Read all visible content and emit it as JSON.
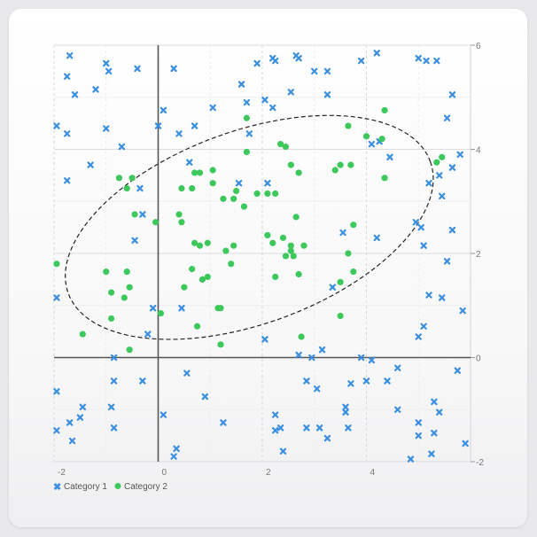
{
  "chart_data": {
    "type": "scatter",
    "xlim": [
      -2,
      6
    ],
    "ylim": [
      -2,
      6
    ],
    "x_ticks": [
      "-2",
      "0",
      "2",
      "4"
    ],
    "y_ticks": [
      "-2",
      "0",
      "2",
      "4",
      "6"
    ],
    "grid": true,
    "legend_position": "bottom-left",
    "series": [
      {
        "name": "Category 1",
        "marker": "x",
        "color": "#3a8fe0",
        "points": [
          [
            -1.7,
            5.8
          ],
          [
            -1.75,
            5.4
          ],
          [
            -1.6,
            5.05
          ],
          [
            -1.2,
            5.15
          ],
          [
            -1.0,
            5.65
          ],
          [
            -0.95,
            5.5
          ],
          [
            -0.4,
            5.55
          ],
          [
            0.3,
            5.55
          ],
          [
            0.1,
            4.75
          ],
          [
            0,
            4.45
          ],
          [
            -1.95,
            4.45
          ],
          [
            -1.75,
            4.3
          ],
          [
            -1.0,
            4.4
          ],
          [
            -0.7,
            4.05
          ],
          [
            -1.3,
            3.7
          ],
          [
            -1.75,
            3.4
          ],
          [
            -0.35,
            3.25
          ],
          [
            -0.3,
            2.75
          ],
          [
            -0.45,
            2.25
          ],
          [
            0.6,
            3.75
          ],
          [
            0.4,
            4.3
          ],
          [
            0.7,
            4.45
          ],
          [
            1.05,
            4.8
          ],
          [
            1.6,
            5.25
          ],
          [
            1.7,
            4.9
          ],
          [
            2.05,
            4.95
          ],
          [
            2.2,
            4.8
          ],
          [
            1.75,
            4.3
          ],
          [
            1.9,
            5.65
          ],
          [
            2.2,
            5.75
          ],
          [
            2.25,
            5.7
          ],
          [
            2.65,
            5.8
          ],
          [
            2.7,
            5.75
          ],
          [
            2.55,
            5.1
          ],
          [
            3.0,
            5.5
          ],
          [
            3.25,
            5.5
          ],
          [
            3.25,
            5.05
          ],
          [
            3.9,
            5.7
          ],
          [
            4.2,
            5.85
          ],
          [
            5.0,
            5.75
          ],
          [
            5.15,
            5.7
          ],
          [
            5.35,
            5.7
          ],
          [
            5.65,
            5.05
          ],
          [
            5.55,
            4.6
          ],
          [
            5.8,
            3.9
          ],
          [
            5.65,
            3.65
          ],
          [
            5.4,
            3.5
          ],
          [
            5.2,
            3.35
          ],
          [
            5.45,
            3.1
          ],
          [
            4.1,
            4.1
          ],
          [
            4.25,
            4.15
          ],
          [
            4.45,
            3.85
          ],
          [
            5.65,
            2.45
          ],
          [
            5.05,
            2.5
          ],
          [
            4.95,
            2.6
          ],
          [
            5.1,
            2.15
          ],
          [
            5.55,
            1.85
          ],
          [
            3.55,
            2.4
          ],
          [
            4.2,
            2.3
          ],
          [
            5.2,
            1.2
          ],
          [
            5.45,
            1.15
          ],
          [
            5.85,
            0.9
          ],
          [
            5.1,
            0.6
          ],
          [
            5.0,
            0.4
          ],
          [
            3.35,
            1.35
          ],
          [
            1.55,
            3.35
          ],
          [
            2.1,
            3.35
          ],
          [
            2.05,
            0.35
          ],
          [
            2.7,
            0.05
          ],
          [
            2.95,
            0.0
          ],
          [
            3.15,
            0.15
          ],
          [
            3.9,
            0.0
          ],
          [
            4.1,
            -0.05
          ],
          [
            4.6,
            -0.2
          ],
          [
            4.4,
            -0.45
          ],
          [
            4.0,
            -0.45
          ],
          [
            3.7,
            -0.5
          ],
          [
            3.05,
            -0.6
          ],
          [
            2.85,
            -0.45
          ],
          [
            3.6,
            -0.95
          ],
          [
            3.6,
            -1.05
          ],
          [
            4.6,
            -1.0
          ],
          [
            5.3,
            -0.85
          ],
          [
            5.4,
            -1.05
          ],
          [
            5.3,
            -1.45
          ],
          [
            5.0,
            -1.25
          ],
          [
            5.0,
            -1.5
          ],
          [
            5.25,
            -1.85
          ],
          [
            4.85,
            -1.95
          ],
          [
            5.75,
            -0.25
          ],
          [
            5.9,
            -1.65
          ],
          [
            -0.85,
            0.0
          ],
          [
            -0.85,
            -0.45
          ],
          [
            -0.3,
            -0.45
          ],
          [
            -0.9,
            -0.95
          ],
          [
            -0.85,
            -1.35
          ],
          [
            -1.45,
            -0.95
          ],
          [
            -1.5,
            -1.15
          ],
          [
            -1.7,
            -1.25
          ],
          [
            -1.65,
            -1.6
          ],
          [
            -1.95,
            -1.4
          ],
          [
            -1.95,
            -0.65
          ],
          [
            0.1,
            -1.1
          ],
          [
            0.55,
            -0.3
          ],
          [
            0.9,
            -0.75
          ],
          [
            1.25,
            -1.25
          ],
          [
            0.35,
            -1.75
          ],
          [
            0.3,
            -1.9
          ],
          [
            2.25,
            -1.1
          ],
          [
            2.25,
            -1.4
          ],
          [
            2.35,
            -1.35
          ],
          [
            2.4,
            -1.8
          ],
          [
            2.85,
            -1.35
          ],
          [
            3.1,
            -1.35
          ],
          [
            3.25,
            -1.55
          ],
          [
            3.65,
            -1.35
          ],
          [
            -0.1,
            0.95
          ],
          [
            0.45,
            0.95
          ],
          [
            -1.95,
            1.15
          ],
          [
            -0.2,
            0.45
          ]
        ]
      },
      {
        "name": "Category 2",
        "marker": "circle",
        "color": "#3cc85a",
        "points": [
          [
            -1.95,
            1.8
          ],
          [
            -1.45,
            0.45
          ],
          [
            -1.0,
            1.65
          ],
          [
            -0.9,
            1.25
          ],
          [
            -0.9,
            0.75
          ],
          [
            -0.75,
            3.45
          ],
          [
            -0.6,
            3.25
          ],
          [
            -0.5,
            3.45
          ],
          [
            -0.45,
            2.75
          ],
          [
            -0.6,
            1.65
          ],
          [
            -0.55,
            1.35
          ],
          [
            -0.65,
            1.15
          ],
          [
            -0.55,
            0.15
          ],
          [
            -0.05,
            2.6
          ],
          [
            0.05,
            0.85
          ],
          [
            0.4,
            2.75
          ],
          [
            0.45,
            2.6
          ],
          [
            0.45,
            3.25
          ],
          [
            0.65,
            3.25
          ],
          [
            0.7,
            3.55
          ],
          [
            0.8,
            3.55
          ],
          [
            0.5,
            1.35
          ],
          [
            0.65,
            1.7
          ],
          [
            0.85,
            1.5
          ],
          [
            0.95,
            1.55
          ],
          [
            0.7,
            2.2
          ],
          [
            0.8,
            2.15
          ],
          [
            0.95,
            2.2
          ],
          [
            1.05,
            3.6
          ],
          [
            1.05,
            3.35
          ],
          [
            1.25,
            3.05
          ],
          [
            1.45,
            3.05
          ],
          [
            1.5,
            3.2
          ],
          [
            1.65,
            2.9
          ],
          [
            1.15,
            0.95
          ],
          [
            1.2,
            0.95
          ],
          [
            0.75,
            0.6
          ],
          [
            1.2,
            0.25
          ],
          [
            1.3,
            2.05
          ],
          [
            1.45,
            2.15
          ],
          [
            1.4,
            1.8
          ],
          [
            1.7,
            3.95
          ],
          [
            1.7,
            4.6
          ],
          [
            1.9,
            3.15
          ],
          [
            2.1,
            3.15
          ],
          [
            2.25,
            3.15
          ],
          [
            2.35,
            4.1
          ],
          [
            2.45,
            4.05
          ],
          [
            2.55,
            3.7
          ],
          [
            2.7,
            3.55
          ],
          [
            2.65,
            2.7
          ],
          [
            2.1,
            2.35
          ],
          [
            2.2,
            2.2
          ],
          [
            2.4,
            2.3
          ],
          [
            2.45,
            1.95
          ],
          [
            2.55,
            2.15
          ],
          [
            2.55,
            2.05
          ],
          [
            2.6,
            1.95
          ],
          [
            2.8,
            2.15
          ],
          [
            2.25,
            1.55
          ],
          [
            2.7,
            1.6
          ],
          [
            2.75,
            0.4
          ],
          [
            3.4,
            3.6
          ],
          [
            3.5,
            3.7
          ],
          [
            3.7,
            3.7
          ],
          [
            3.65,
            4.45
          ],
          [
            4.0,
            4.25
          ],
          [
            4.35,
            4.75
          ],
          [
            4.3,
            4.2
          ],
          [
            4.35,
            3.45
          ],
          [
            3.75,
            2.55
          ],
          [
            3.65,
            2.0
          ],
          [
            3.75,
            1.65
          ],
          [
            3.5,
            1.45
          ],
          [
            3.5,
            0.8
          ],
          [
            5.35,
            3.75
          ],
          [
            5.45,
            3.85
          ]
        ]
      }
    ],
    "ellipse": {
      "center": [
        1.75,
        2.5
      ],
      "rx": 3.7,
      "ry": 1.85,
      "rotation_deg": 20,
      "style": "dashed"
    }
  },
  "legend": {
    "items": [
      "Category 1",
      "Category 2"
    ]
  }
}
